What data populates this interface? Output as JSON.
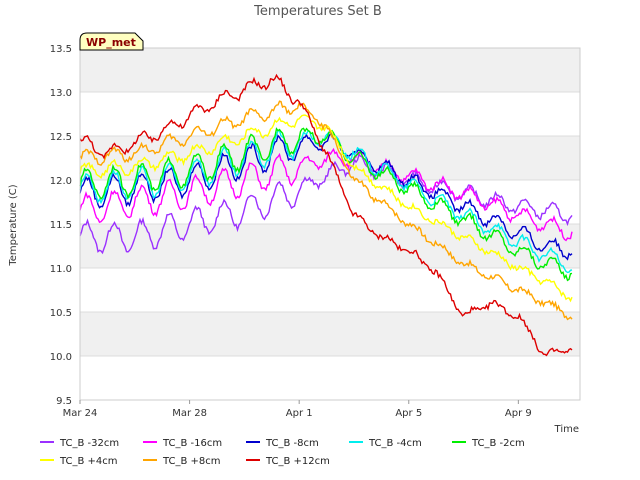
{
  "chart_data": {
    "type": "line",
    "title": "Temperatures Set B",
    "xlabel": "Time",
    "ylabel": "Temperature (C)",
    "badge": "WP_met",
    "xlim": [
      "2023-03-24",
      "2023-04-11T06:00"
    ],
    "ylim": [
      9.5,
      13.5
    ],
    "x_ticks": [
      {
        "date": "2023-03-24",
        "label": "Mar 24"
      },
      {
        "date": "2023-03-28",
        "label": "Mar 28"
      },
      {
        "date": "2023-04-01",
        "label": "Apr 1"
      },
      {
        "date": "2023-04-05",
        "label": "Apr 5"
      },
      {
        "date": "2023-04-09",
        "label": "Apr 9"
      }
    ],
    "y_ticks": [
      9.5,
      10.0,
      10.5,
      11.0,
      11.5,
      12.0,
      12.5,
      13.0,
      13.5
    ],
    "grid": true,
    "background_bands": true,
    "legend_position": "bottom",
    "series": [
      {
        "name": "TC_B -32cm",
        "color": "#9b30ff",
        "x": [
          "2023-03-24",
          "2023-03-26",
          "2023-03-28",
          "2023-03-30",
          "2023-04-01",
          "2023-04-02",
          "2023-04-03",
          "2023-04-05",
          "2023-04-07",
          "2023-04-09",
          "2023-04-10",
          "2023-04-11"
        ],
        "y": [
          11.35,
          11.35,
          11.5,
          11.65,
          11.9,
          12.05,
          12.2,
          12.0,
          11.85,
          11.7,
          11.65,
          11.6
        ]
      },
      {
        "name": "TC_B -16cm",
        "color": "#ff00ff",
        "x": [
          "2023-03-24",
          "2023-03-26",
          "2023-03-28",
          "2023-03-30",
          "2023-04-01",
          "2023-04-02",
          "2023-04-03",
          "2023-04-05",
          "2023-04-07",
          "2023-04-09",
          "2023-04-10",
          "2023-04-11"
        ],
        "y": [
          11.65,
          11.75,
          11.85,
          12.0,
          12.15,
          12.25,
          12.25,
          12.05,
          11.85,
          11.6,
          11.5,
          11.4
        ]
      },
      {
        "name": "TC_B -8cm",
        "color": "#0000cd",
        "x": [
          "2023-03-24",
          "2023-03-26",
          "2023-03-28",
          "2023-03-30",
          "2023-04-01",
          "2023-04-02",
          "2023-04-03",
          "2023-04-05",
          "2023-04-07",
          "2023-04-09",
          "2023-04-10",
          "2023-04-11"
        ],
        "y": [
          11.85,
          11.9,
          12.0,
          12.2,
          12.4,
          12.45,
          12.3,
          12.0,
          11.7,
          11.4,
          11.25,
          11.2
        ]
      },
      {
        "name": "TC_B -4cm",
        "color": "#00eeee",
        "x": [
          "2023-03-24",
          "2023-03-26",
          "2023-03-28",
          "2023-03-30",
          "2023-04-01",
          "2023-04-02",
          "2023-04-03",
          "2023-04-05",
          "2023-04-07",
          "2023-04-09",
          "2023-04-10",
          "2023-04-11"
        ],
        "y": [
          11.9,
          11.95,
          12.05,
          12.25,
          12.45,
          12.5,
          12.3,
          11.95,
          11.6,
          11.3,
          11.15,
          11.0
        ]
      },
      {
        "name": "TC_B -2cm",
        "color": "#00ee00",
        "x": [
          "2023-03-24",
          "2023-03-26",
          "2023-03-28",
          "2023-03-30",
          "2023-04-01",
          "2023-04-02",
          "2023-04-03",
          "2023-04-05",
          "2023-04-07",
          "2023-04-09",
          "2023-04-10",
          "2023-04-11"
        ],
        "y": [
          11.95,
          12.0,
          12.1,
          12.3,
          12.5,
          12.5,
          12.25,
          11.9,
          11.55,
          11.2,
          11.05,
          10.95
        ]
      },
      {
        "name": "TC_B +4cm",
        "color": "#ffff00",
        "x": [
          "2023-03-24",
          "2023-03-26",
          "2023-03-28",
          "2023-03-30",
          "2023-04-01",
          "2023-04-02",
          "2023-04-03",
          "2023-04-05",
          "2023-04-07",
          "2023-04-09",
          "2023-04-10",
          "2023-04-11"
        ],
        "y": [
          12.1,
          12.15,
          12.3,
          12.5,
          12.7,
          12.6,
          12.15,
          11.7,
          11.35,
          11.0,
          10.85,
          10.65
        ]
      },
      {
        "name": "TC_B +8cm",
        "color": "#ffa500",
        "x": [
          "2023-03-24",
          "2023-03-26",
          "2023-03-28",
          "2023-03-30",
          "2023-04-01",
          "2023-04-02",
          "2023-04-03",
          "2023-04-05",
          "2023-04-07",
          "2023-04-09",
          "2023-04-10",
          "2023-04-11"
        ],
        "y": [
          12.25,
          12.3,
          12.5,
          12.7,
          12.85,
          12.6,
          12.0,
          11.5,
          11.05,
          10.75,
          10.6,
          10.45
        ]
      },
      {
        "name": "TC_B +12cm",
        "color": "#dd0000",
        "x": [
          "2023-03-24",
          "2023-03-25",
          "2023-03-27",
          "2023-03-29",
          "2023-03-31",
          "2023-04-01",
          "2023-04-02",
          "2023-04-03",
          "2023-04-04",
          "2023-04-05",
          "2023-04-06",
          "2023-04-07",
          "2023-04-08",
          "2023-04-09",
          "2023-04-10",
          "2023-04-11"
        ],
        "y": [
          12.45,
          12.3,
          12.55,
          12.9,
          13.15,
          12.9,
          12.3,
          11.6,
          11.35,
          11.2,
          10.95,
          10.45,
          10.6,
          10.45,
          10.0,
          10.1
        ]
      }
    ]
  }
}
